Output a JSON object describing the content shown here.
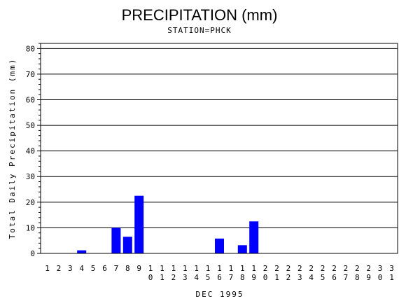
{
  "chart_data": {
    "type": "bar",
    "title": "PRECIPITATION (mm)",
    "subtitle": "STATION=PHCK",
    "xlabel": "DEC 1995",
    "ylabel": "Total Daily Precipitation (mm)",
    "ylim": [
      0,
      82
    ],
    "yticks": [
      0,
      10,
      20,
      30,
      40,
      50,
      60,
      70,
      80
    ],
    "grid": true,
    "bar_color": "#0000ff",
    "categories": [
      "1",
      "2",
      "3",
      "4",
      "5",
      "6",
      "7",
      "8",
      "9",
      "10",
      "11",
      "12",
      "13",
      "14",
      "15",
      "16",
      "17",
      "18",
      "19",
      "20",
      "21",
      "22",
      "23",
      "24",
      "25",
      "26",
      "27",
      "28",
      "29",
      "30",
      "31"
    ],
    "values": [
      0,
      0,
      0,
      1.2,
      0,
      0,
      10,
      6.5,
      22.5,
      0,
      0,
      0,
      0,
      0,
      0,
      5.8,
      0,
      3.2,
      12.5,
      0,
      0,
      0,
      0,
      0,
      0,
      0,
      0,
      0,
      0,
      0,
      0
    ]
  }
}
